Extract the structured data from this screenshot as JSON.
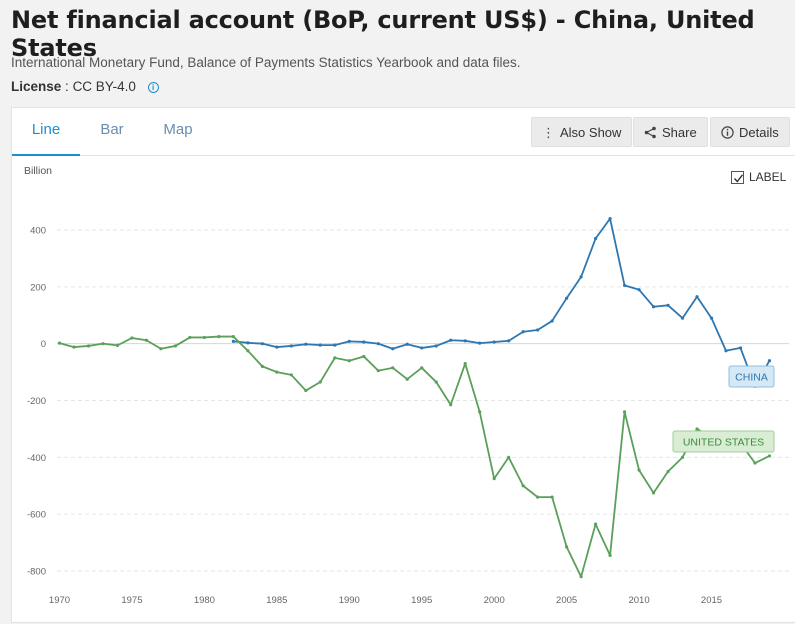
{
  "page": {
    "title": "Net financial account (BoP, current US$) - China, United States",
    "source": "International Monetary Fund, Balance of Payments Statistics Yearbook and data files.",
    "license_label": "License",
    "license_value": "CC BY-4.0"
  },
  "tabs": [
    {
      "label": "Line",
      "active": true
    },
    {
      "label": "Bar",
      "active": false
    },
    {
      "label": "Map",
      "active": false
    }
  ],
  "actions": {
    "also_show": "Also Show",
    "share": "Share",
    "details": "Details"
  },
  "label_toggle": {
    "label": "LABEL",
    "checked": true
  },
  "colors": {
    "china": "#2e77b1",
    "united_states": "#5aa05a",
    "accent": "#1b8fd2"
  },
  "chart_data": {
    "type": "line",
    "ylabel": "Billion",
    "ylim": [
      -850,
      520
    ],
    "xlim": [
      1969,
      2020
    ],
    "yticks": [
      400,
      200,
      0,
      -200,
      -400,
      -600,
      -800
    ],
    "xticks": [
      1970,
      1975,
      1980,
      1985,
      1990,
      1995,
      2000,
      2005,
      2010,
      2015
    ],
    "grid": true,
    "series": [
      {
        "name": "CHINA",
        "color": "#2e77b1",
        "x": [
          1982,
          1983,
          1984,
          1985,
          1986,
          1987,
          1988,
          1989,
          1990,
          1991,
          1992,
          1993,
          1994,
          1995,
          1996,
          1997,
          1998,
          1999,
          2000,
          2001,
          2002,
          2003,
          2004,
          2005,
          2006,
          2007,
          2008,
          2009,
          2010,
          2011,
          2012,
          2013,
          2014,
          2015,
          2016,
          2017,
          2018,
          2019
        ],
        "values": [
          8,
          3,
          0,
          -12,
          -8,
          -2,
          -5,
          -5,
          8,
          6,
          0,
          -18,
          -2,
          -15,
          -8,
          12,
          10,
          2,
          6,
          10,
          42,
          48,
          80,
          160,
          235,
          370,
          440,
          205,
          190,
          130,
          135,
          90,
          165,
          90,
          -25,
          -15,
          -150,
          -60
        ]
      },
      {
        "name": "UNITED STATES",
        "color": "#5aa05a",
        "x": [
          1970,
          1971,
          1972,
          1973,
          1974,
          1975,
          1976,
          1977,
          1978,
          1979,
          1980,
          1981,
          1982,
          1983,
          1984,
          1985,
          1986,
          1987,
          1988,
          1989,
          1990,
          1991,
          1992,
          1993,
          1994,
          1995,
          1996,
          1997,
          1998,
          1999,
          2000,
          2001,
          2002,
          2003,
          2004,
          2005,
          2006,
          2007,
          2008,
          2009,
          2010,
          2011,
          2012,
          2013,
          2014,
          2015,
          2016,
          2017,
          2018,
          2019
        ],
        "values": [
          2,
          -12,
          -8,
          0,
          -6,
          20,
          12,
          -18,
          -8,
          22,
          22,
          25,
          25,
          -25,
          -80,
          -100,
          -110,
          -165,
          -135,
          -50,
          -60,
          -45,
          -95,
          -85,
          -125,
          -85,
          -135,
          -215,
          -70,
          -240,
          -475,
          -400,
          -500,
          -540,
          -540,
          -715,
          -820,
          -635,
          -745,
          -240,
          -445,
          -525,
          -450,
          -400,
          -300,
          -330,
          -370,
          -350,
          -420,
          -395
        ]
      }
    ]
  }
}
